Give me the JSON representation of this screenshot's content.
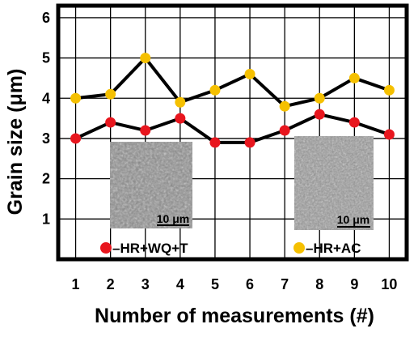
{
  "chart_data": {
    "type": "line",
    "xlabel": "Number of measurements (#)",
    "ylabel": "Grain size (μm)",
    "x": [
      1,
      2,
      3,
      4,
      5,
      6,
      7,
      8,
      9,
      10
    ],
    "xlim": [
      0.5,
      10.5
    ],
    "ylim": [
      0,
      6.3
    ],
    "yticks": [
      1,
      2,
      3,
      4,
      5,
      6
    ],
    "grid": true,
    "legend_placement": "bottom",
    "series": [
      {
        "name": "HR+WQ+T",
        "color": "#e8161e",
        "values": [
          3.0,
          3.4,
          3.2,
          3.5,
          2.9,
          2.9,
          3.2,
          3.6,
          3.4,
          3.1
        ]
      },
      {
        "name": "HR+AC",
        "color": "#f5c000",
        "values": [
          4.0,
          4.1,
          5.0,
          3.9,
          4.2,
          4.6,
          3.8,
          4.0,
          4.5,
          4.2
        ]
      }
    ],
    "micrographs": [
      {
        "scale_bar": "10 μm"
      },
      {
        "scale_bar": "10 μm"
      }
    ]
  },
  "legend": {
    "item1": "–HR+WQ+T",
    "item2": "–HR+AC"
  }
}
